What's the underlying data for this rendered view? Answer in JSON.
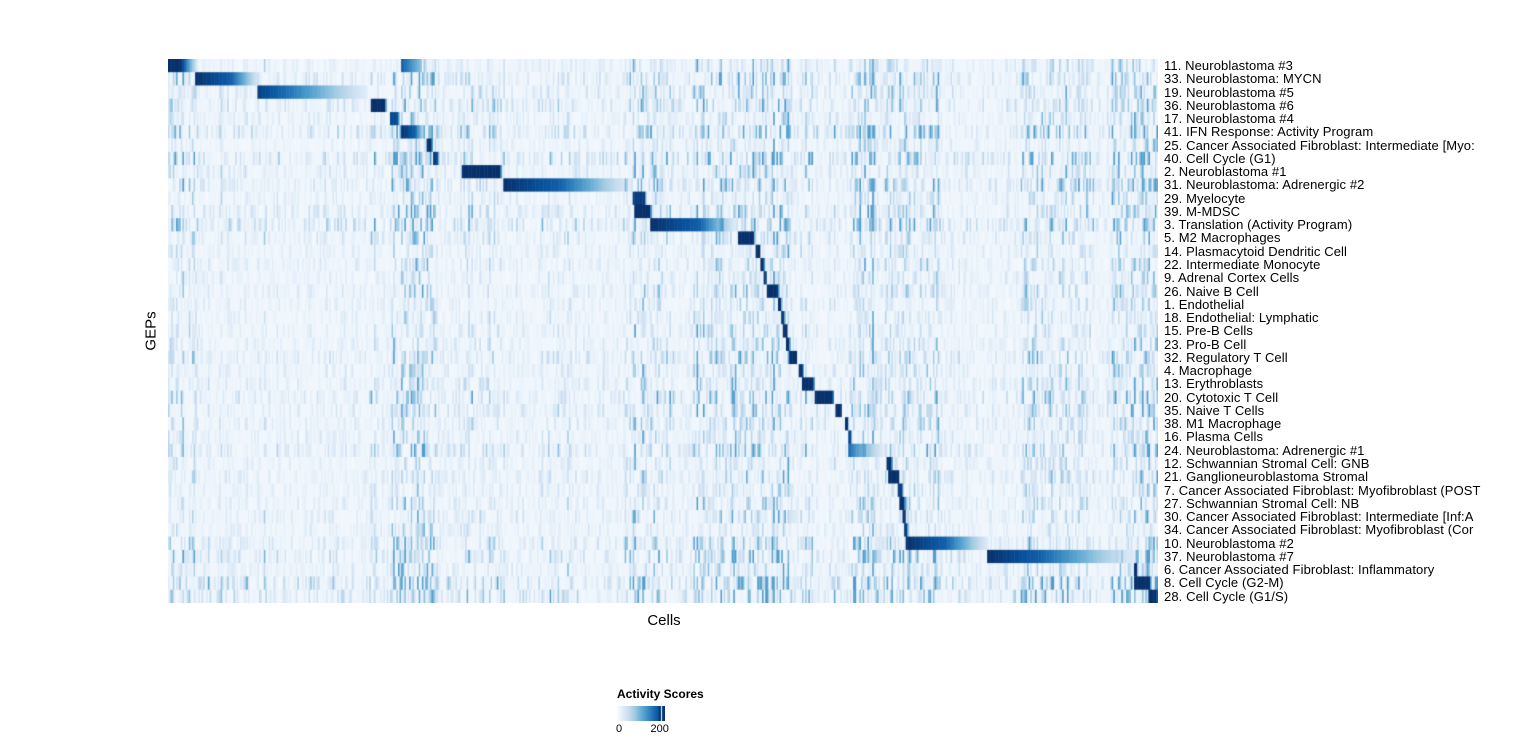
{
  "legend": {
    "title": "Activity Scores",
    "min_label": "0",
    "max_label": "200",
    "tick_fraction": 0.89
  },
  "colors": {
    "background": "#ffffff",
    "scale": [
      "#f7fbff",
      "#deebf7",
      "#c6dbef",
      "#9ecae1",
      "#6baed6",
      "#4292c6",
      "#2171b5",
      "#08519c",
      "#08306b"
    ],
    "tick_mark": "#08306b"
  },
  "chart_data": {
    "type": "heatmap",
    "title": "",
    "xlabel": "Cells",
    "ylabel": "GEPs",
    "x_ticks": [],
    "colorbar": {
      "label": "Activity Scores",
      "ticks": [
        0,
        200
      ]
    },
    "layout": {
      "columns": 620,
      "grid": false,
      "legend_position": "bottom-center"
    },
    "noise_bands": [
      [
        0.0,
        0.03,
        1.5
      ],
      [
        0.225,
        0.272,
        2.2
      ],
      [
        0.295,
        0.34,
        1.3
      ],
      [
        0.46,
        0.51,
        1.8
      ],
      [
        0.53,
        0.63,
        2.0
      ],
      [
        0.69,
        0.78,
        1.9
      ],
      [
        0.86,
        0.935,
        1.7
      ],
      [
        0.952,
        1.0,
        2.6
      ]
    ],
    "rows": [
      {
        "label": "11. Neuroblastoma #3",
        "start": 0.0,
        "end": 0.013,
        "fade": 0.03,
        "peak": 1.0,
        "grad": false,
        "noise": 0.35,
        "block2": [
          0.235,
          0.257,
          0.85
        ]
      },
      {
        "label": "33. Neuroblastoma: MYCN",
        "start": 0.027,
        "end": 0.064,
        "fade": 0.093,
        "peak": 1.0,
        "grad": true,
        "noise": 0.5
      },
      {
        "label": "19. Neuroblastoma #5",
        "start": 0.09,
        "end": 0.119,
        "fade": 0.202,
        "peak": 0.95,
        "grad": true,
        "noise": 0.45
      },
      {
        "label": "36. Neuroblastoma #6",
        "start": 0.205,
        "end": 0.219,
        "fade": 0.2215,
        "peak": 1.0,
        "grad": false,
        "noise": 0.55
      },
      {
        "label": "17. Neuroblastoma #4",
        "start": 0.2235,
        "end": 0.2325,
        "fade": 0.234,
        "peak": 0.9,
        "grad": false,
        "noise": 0.35
      },
      {
        "label": "41. IFN Response: Activity Program",
        "start": 0.2355,
        "end": 0.2495,
        "fade": 0.2605,
        "peak": 1.0,
        "grad": true,
        "noise": 0.75
      },
      {
        "label": "25. Cancer Associated Fibroblast: Intermediate [Myo:",
        "start": 0.2615,
        "end": 0.2665,
        "fade": 0.2675,
        "peak": 1.0,
        "grad": false,
        "noise": 0.3
      },
      {
        "label": "40. Cell Cycle (G1)",
        "start": 0.267,
        "end": 0.272,
        "fade": 0.2745,
        "peak": 0.95,
        "grad": false,
        "noise": 0.8
      },
      {
        "label": "2. Neuroblastoma #1",
        "start": 0.2965,
        "end": 0.3355,
        "fade": 0.338,
        "peak": 1.0,
        "grad": false,
        "noise": 0.45
      },
      {
        "label": "31. Neuroblastoma: Adrenergic #2",
        "start": 0.338,
        "end": 0.3955,
        "fade": 0.4675,
        "peak": 1.0,
        "grad": true,
        "noise": 0.55
      },
      {
        "label": "29. Myelocyte",
        "start": 0.4695,
        "end": 0.4815,
        "fade": 0.4835,
        "peak": 0.95,
        "grad": false,
        "noise": 0.35
      },
      {
        "label": "39. M-MDSC",
        "start": 0.4705,
        "end": 0.4865,
        "fade": 0.49,
        "peak": 1.0,
        "grad": false,
        "noise": 0.5
      },
      {
        "label": "3. Translation (Activity Program)",
        "start": 0.487,
        "end": 0.537,
        "fade": 0.5745,
        "peak": 1.0,
        "grad": true,
        "noise": 0.75
      },
      {
        "label": "5. M2 Macrophages",
        "start": 0.5755,
        "end": 0.5915,
        "fade": 0.5935,
        "peak": 1.0,
        "grad": false,
        "noise": 0.45
      },
      {
        "label": "14. Plasmacytoid Dendritic Cell",
        "start": 0.5935,
        "end": 0.598,
        "fade": 0.599,
        "peak": 1.0,
        "grad": false,
        "noise": 0.3
      },
      {
        "label": "22. Intermediate Monocyte",
        "start": 0.598,
        "end": 0.602,
        "fade": 0.603,
        "peak": 1.0,
        "grad": false,
        "noise": 0.35
      },
      {
        "label": "9. Adrenal Cortex Cells",
        "start": 0.602,
        "end": 0.6045,
        "fade": 0.605,
        "peak": 0.95,
        "grad": false,
        "noise": 0.3
      },
      {
        "label": "26. Naive B Cell",
        "start": 0.6045,
        "end": 0.6165,
        "fade": 0.6175,
        "peak": 1.0,
        "grad": false,
        "noise": 0.4
      },
      {
        "label": "1. Endothelial",
        "start": 0.6165,
        "end": 0.6195,
        "fade": 0.6205,
        "peak": 1.0,
        "grad": false,
        "noise": 0.3
      },
      {
        "label": "18. Endothelial: Lymphatic",
        "start": 0.619,
        "end": 0.6225,
        "fade": 0.623,
        "peak": 0.95,
        "grad": false,
        "noise": 0.3
      },
      {
        "label": "15. Pre-B Cells",
        "start": 0.6215,
        "end": 0.625,
        "fade": 0.626,
        "peak": 1.0,
        "grad": false,
        "noise": 0.35
      },
      {
        "label": "23. Pro-B Cell",
        "start": 0.625,
        "end": 0.628,
        "fade": 0.6285,
        "peak": 1.0,
        "grad": false,
        "noise": 0.35
      },
      {
        "label": "32. Regulatory T Cell",
        "start": 0.628,
        "end": 0.635,
        "fade": 0.636,
        "peak": 1.0,
        "grad": false,
        "noise": 0.5
      },
      {
        "label": "4. Macrophage",
        "start": 0.637,
        "end": 0.641,
        "fade": 0.642,
        "peak": 1.0,
        "grad": false,
        "noise": 0.35
      },
      {
        "label": "13. Erythroblasts",
        "start": 0.6405,
        "end": 0.652,
        "fade": 0.6535,
        "peak": 1.0,
        "grad": false,
        "noise": 0.4
      },
      {
        "label": "20. Cytotoxic T Cell",
        "start": 0.653,
        "end": 0.6715,
        "fade": 0.673,
        "peak": 1.0,
        "grad": false,
        "noise": 0.6
      },
      {
        "label": "35. Naive T Cells",
        "start": 0.6745,
        "end": 0.68,
        "fade": 0.681,
        "peak": 1.0,
        "grad": false,
        "noise": 0.45
      },
      {
        "label": "38. M1 Macrophage",
        "start": 0.684,
        "end": 0.687,
        "fade": 0.688,
        "peak": 1.0,
        "grad": false,
        "noise": 0.4
      },
      {
        "label": "16. Plasma Cells",
        "start": 0.687,
        "end": 0.69,
        "fade": 0.691,
        "peak": 0.9,
        "grad": false,
        "noise": 0.35
      },
      {
        "label": "24. Neuroblastoma: Adrenergic #1",
        "start": 0.687,
        "end": 0.694,
        "fade": 0.7235,
        "peak": 0.8,
        "grad": true,
        "noise": 0.55
      },
      {
        "label": "12. Schwannian Stromal Cell: GNB",
        "start": 0.726,
        "end": 0.731,
        "fade": 0.732,
        "peak": 1.0,
        "grad": false,
        "noise": 0.3
      },
      {
        "label": "21. Ganglioneuroblastoma Stromal",
        "start": 0.728,
        "end": 0.7385,
        "fade": 0.7395,
        "peak": 1.0,
        "grad": false,
        "noise": 0.4
      },
      {
        "label": "7. Cancer Associated Fibroblast: Myofibroblast (POST",
        "start": 0.7375,
        "end": 0.742,
        "fade": 0.743,
        "peak": 0.95,
        "grad": false,
        "noise": 0.3
      },
      {
        "label": "27. Schwannian Stromal Cell: NB",
        "start": 0.7395,
        "end": 0.744,
        "fade": 0.745,
        "peak": 1.0,
        "grad": false,
        "noise": 0.35
      },
      {
        "label": "30. Cancer Associated Fibroblast: Intermediate [Inf:A",
        "start": 0.7415,
        "end": 0.7455,
        "fade": 0.746,
        "peak": 1.0,
        "grad": false,
        "noise": 0.4
      },
      {
        "label": "34. Cancer Associated Fibroblast: Myofibroblast (Cor",
        "start": 0.744,
        "end": 0.747,
        "fade": 0.748,
        "peak": 0.95,
        "grad": false,
        "noise": 0.3
      },
      {
        "label": "10. Neuroblastoma #2",
        "start": 0.7455,
        "end": 0.785,
        "fade": 0.8295,
        "peak": 1.0,
        "grad": true,
        "noise": 0.5
      },
      {
        "label": "37. Neuroblastoma #7",
        "start": 0.828,
        "end": 0.8805,
        "fade": 0.978,
        "peak": 1.0,
        "grad": true,
        "noise": 0.65
      },
      {
        "label": "6. Cancer Associated Fibroblast: Inflammatory",
        "start": 0.9755,
        "end": 0.979,
        "fade": 0.98,
        "peak": 1.0,
        "grad": false,
        "noise": 0.4
      },
      {
        "label": "8. Cell Cycle (G2-M)",
        "start": 0.9755,
        "end": 0.9915,
        "fade": 0.992,
        "peak": 1.0,
        "grad": false,
        "noise": 0.8
      },
      {
        "label": "28. Cell Cycle (G1/S)",
        "start": 0.9905,
        "end": 0.999,
        "fade": 1.0,
        "peak": 1.0,
        "grad": false,
        "noise": 0.75
      }
    ]
  }
}
